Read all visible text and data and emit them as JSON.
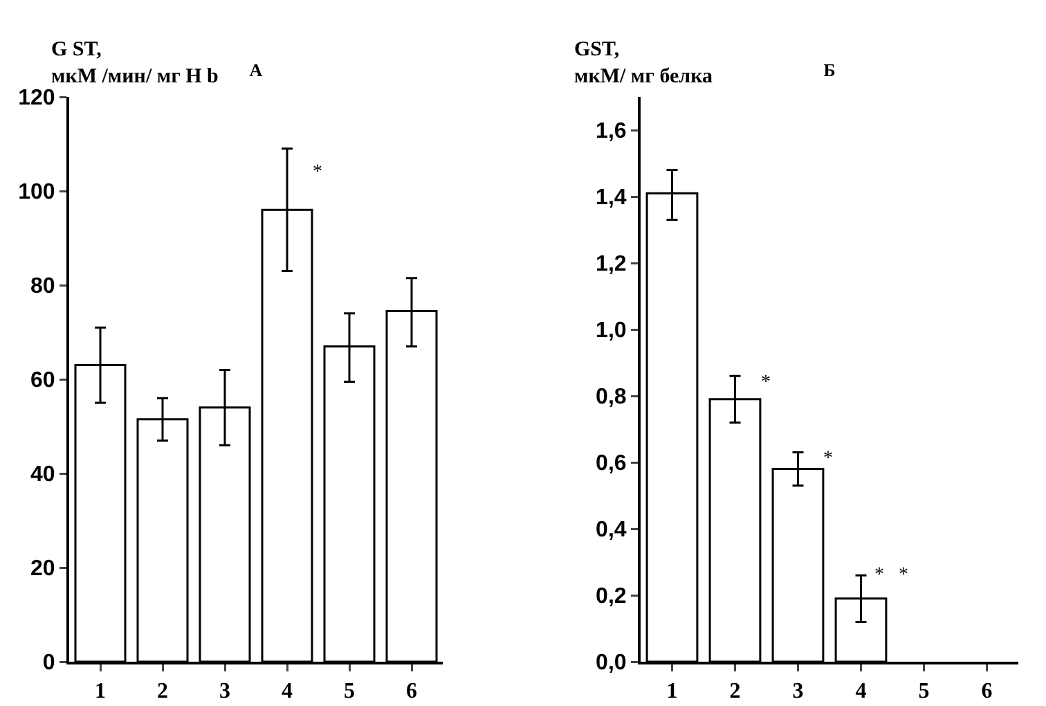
{
  "chart_data": [
    {
      "type": "bar",
      "title": "А",
      "ylabel": "G ST,\nмкМ /мин/ мг H b",
      "categories": [
        "1",
        "2",
        "3",
        "4",
        "5",
        "6"
      ],
      "values": [
        63,
        51.5,
        54,
        96,
        67,
        74.5
      ],
      "color": "#ffffff",
      "errors": [
        [
          55,
          71
        ],
        [
          47,
          56
        ],
        [
          46,
          62
        ],
        [
          83,
          109
        ],
        [
          59.5,
          74
        ],
        [
          67,
          81.5
        ]
      ],
      "ylim": [
        0,
        120
      ],
      "yticks": [
        0,
        20,
        40,
        60,
        80,
        100,
        120
      ],
      "grid": false,
      "annotations": [
        {
          "text": "*",
          "x": "4",
          "y": 104
        }
      ]
    },
    {
      "type": "bar",
      "title": "Б",
      "ylabel": "GST,\nмкМ/ мг белка",
      "categories": [
        "1",
        "2",
        "3",
        "4",
        "5",
        "6"
      ],
      "values": [
        1.41,
        0.79,
        0.58,
        0.19,
        null,
        null
      ],
      "color": "#ffffff",
      "errors": [
        [
          1.33,
          1.48
        ],
        [
          0.72,
          0.86
        ],
        [
          0.53,
          0.63
        ],
        [
          0.12,
          0.26
        ],
        null,
        null
      ],
      "ylim": [
        0,
        1.7
      ],
      "yticks": [
        {
          "value": 0,
          "label": "0,0"
        },
        {
          "value": 0.2,
          "label": "0,2"
        },
        {
          "value": 0.4,
          "label": "0,4"
        },
        {
          "value": 0.6,
          "label": "0,6"
        },
        {
          "value": 0.8,
          "label": "0,8"
        },
        {
          "value": 1,
          "label": "1,0"
        },
        {
          "value": 1.2,
          "label": "1,2"
        },
        {
          "value": 1.4,
          "label": "1,4"
        },
        {
          "value": 1.6,
          "label": "1,6"
        }
      ],
      "grid": false,
      "annotations": [
        {
          "text": "*",
          "x": "2",
          "y": 0.84
        },
        {
          "text": "*",
          "x": "3",
          "y": 0.61
        },
        {
          "text": "*   *",
          "x": "4",
          "y": 0.26
        }
      ]
    }
  ]
}
